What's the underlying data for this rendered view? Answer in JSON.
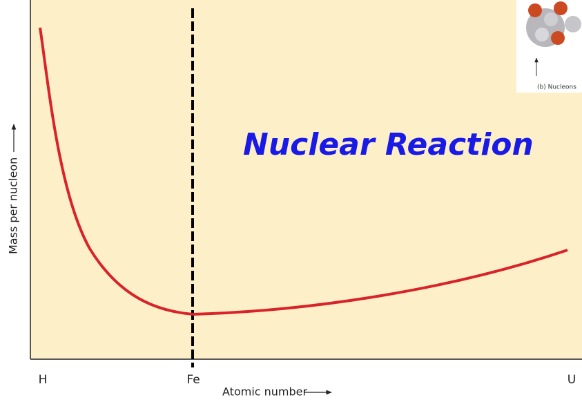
{
  "title": "Nuclear Reaction",
  "y_axis_label": "Mass per nucleon",
  "x_axis_label": "Atomic number",
  "x_tick_labels": [
    "H",
    "Fe",
    "U"
  ],
  "inset_caption": "(b) Nucleons"
}
